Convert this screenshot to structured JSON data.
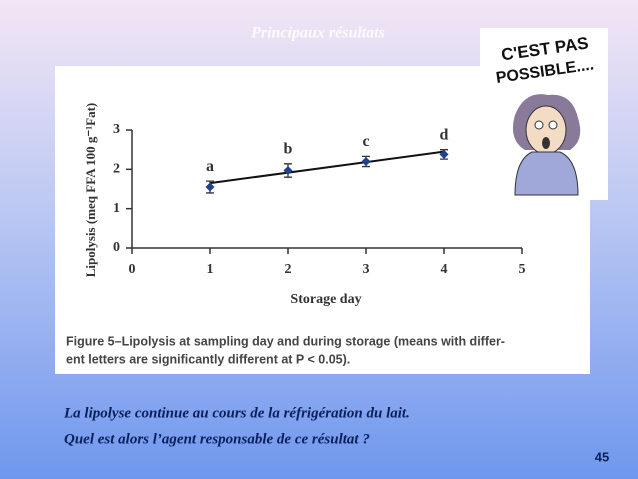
{
  "slide": {
    "title": "Principaux résultats",
    "cartoon_text": [
      "C'EST PAS",
      "POSSIBLE...."
    ],
    "text_lines": [
      "La lipolyse continue au cours de la réfrigération du lait.",
      "Quel est alors l’agent responsable de ce résultat ?"
    ],
    "page_number": "45"
  },
  "chart_data": {
    "type": "scatter",
    "x_label": "Storage day",
    "y_label": "Lipolysis (meq FFA 100 g⁻¹Fat)",
    "caption": [
      "Figure 5–Lipolysis at sampling day and during storage (means with differ-",
      "ent letters are significantly different at P < 0.05)."
    ],
    "x": [
      1,
      2,
      3,
      4
    ],
    "values": [
      1.55,
      1.97,
      2.2,
      2.38
    ],
    "errors": [
      0.15,
      0.17,
      0.13,
      0.12
    ],
    "annotations": [
      "a",
      "b",
      "c",
      "d"
    ],
    "color": "#1f3f8f",
    "trendline": {
      "x": [
        1,
        4
      ],
      "values": [
        1.65,
        2.45
      ]
    },
    "xlim": [
      0,
      5
    ],
    "xticks": [
      0,
      1,
      2,
      3,
      4,
      5
    ],
    "ylim": [
      0,
      3
    ],
    "yticks": [
      0,
      1,
      2,
      3
    ]
  }
}
